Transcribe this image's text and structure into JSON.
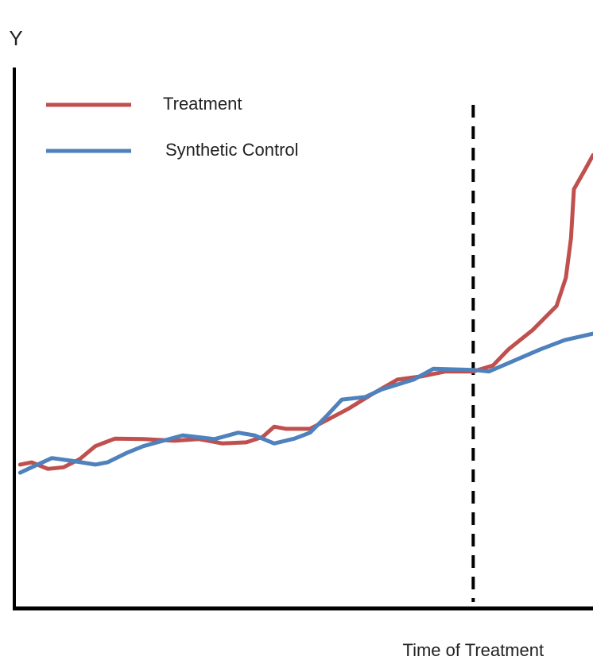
{
  "chart_data": {
    "type": "line",
    "y_label": "Y",
    "xlim": [
      0,
      100
    ],
    "ylim": [
      0,
      100
    ],
    "legend": "upper-left",
    "series": [
      {
        "name": "Treatment",
        "color": "#c0504d",
        "x": [
          1.0,
          3.0,
          5.8,
          8.5,
          11.3,
          14.0,
          17.4,
          22.3,
          27.7,
          31.9,
          36.0,
          40.1,
          42.9,
          44.9,
          47.0,
          51.1,
          53.8,
          57.7,
          62.1,
          66.2,
          70.3,
          74.5,
          79.3,
          82.7,
          85.4,
          89.6,
          93.7,
          95.3,
          96.2,
          96.7,
          98.5,
          100
        ],
        "values": [
          26.6,
          27.0,
          25.8,
          26.1,
          27.6,
          30.0,
          31.4,
          31.3,
          31.0,
          31.3,
          30.5,
          30.7,
          31.7,
          33.6,
          33.2,
          33.2,
          34.7,
          36.9,
          39.8,
          42.3,
          42.9,
          43.8,
          43.8,
          44.9,
          47.9,
          51.5,
          55.9,
          61.1,
          68.4,
          77.5,
          80.9,
          83.8
        ]
      },
      {
        "name": "Synthetic Control",
        "color": "#4f81bd",
        "x": [
          1.0,
          3.0,
          6.5,
          9.9,
          14.0,
          16.1,
          19.5,
          22.3,
          29.1,
          34.6,
          38.7,
          41.5,
          44.9,
          48.4,
          51.1,
          53.8,
          56.6,
          60.7,
          63.5,
          69.0,
          72.4,
          79.3,
          82.0,
          86.8,
          90.9,
          95.1,
          100
        ],
        "values": [
          25.1,
          26.1,
          27.8,
          27.3,
          26.6,
          27.0,
          28.8,
          30.0,
          32.0,
          31.3,
          32.5,
          32.0,
          30.5,
          31.4,
          32.5,
          35.4,
          38.6,
          39.1,
          40.5,
          42.3,
          44.3,
          44.1,
          43.8,
          46.0,
          47.9,
          49.6,
          50.8
        ]
      }
    ],
    "vline": {
      "x": 79.3,
      "label": "Time of Treatment"
    }
  }
}
